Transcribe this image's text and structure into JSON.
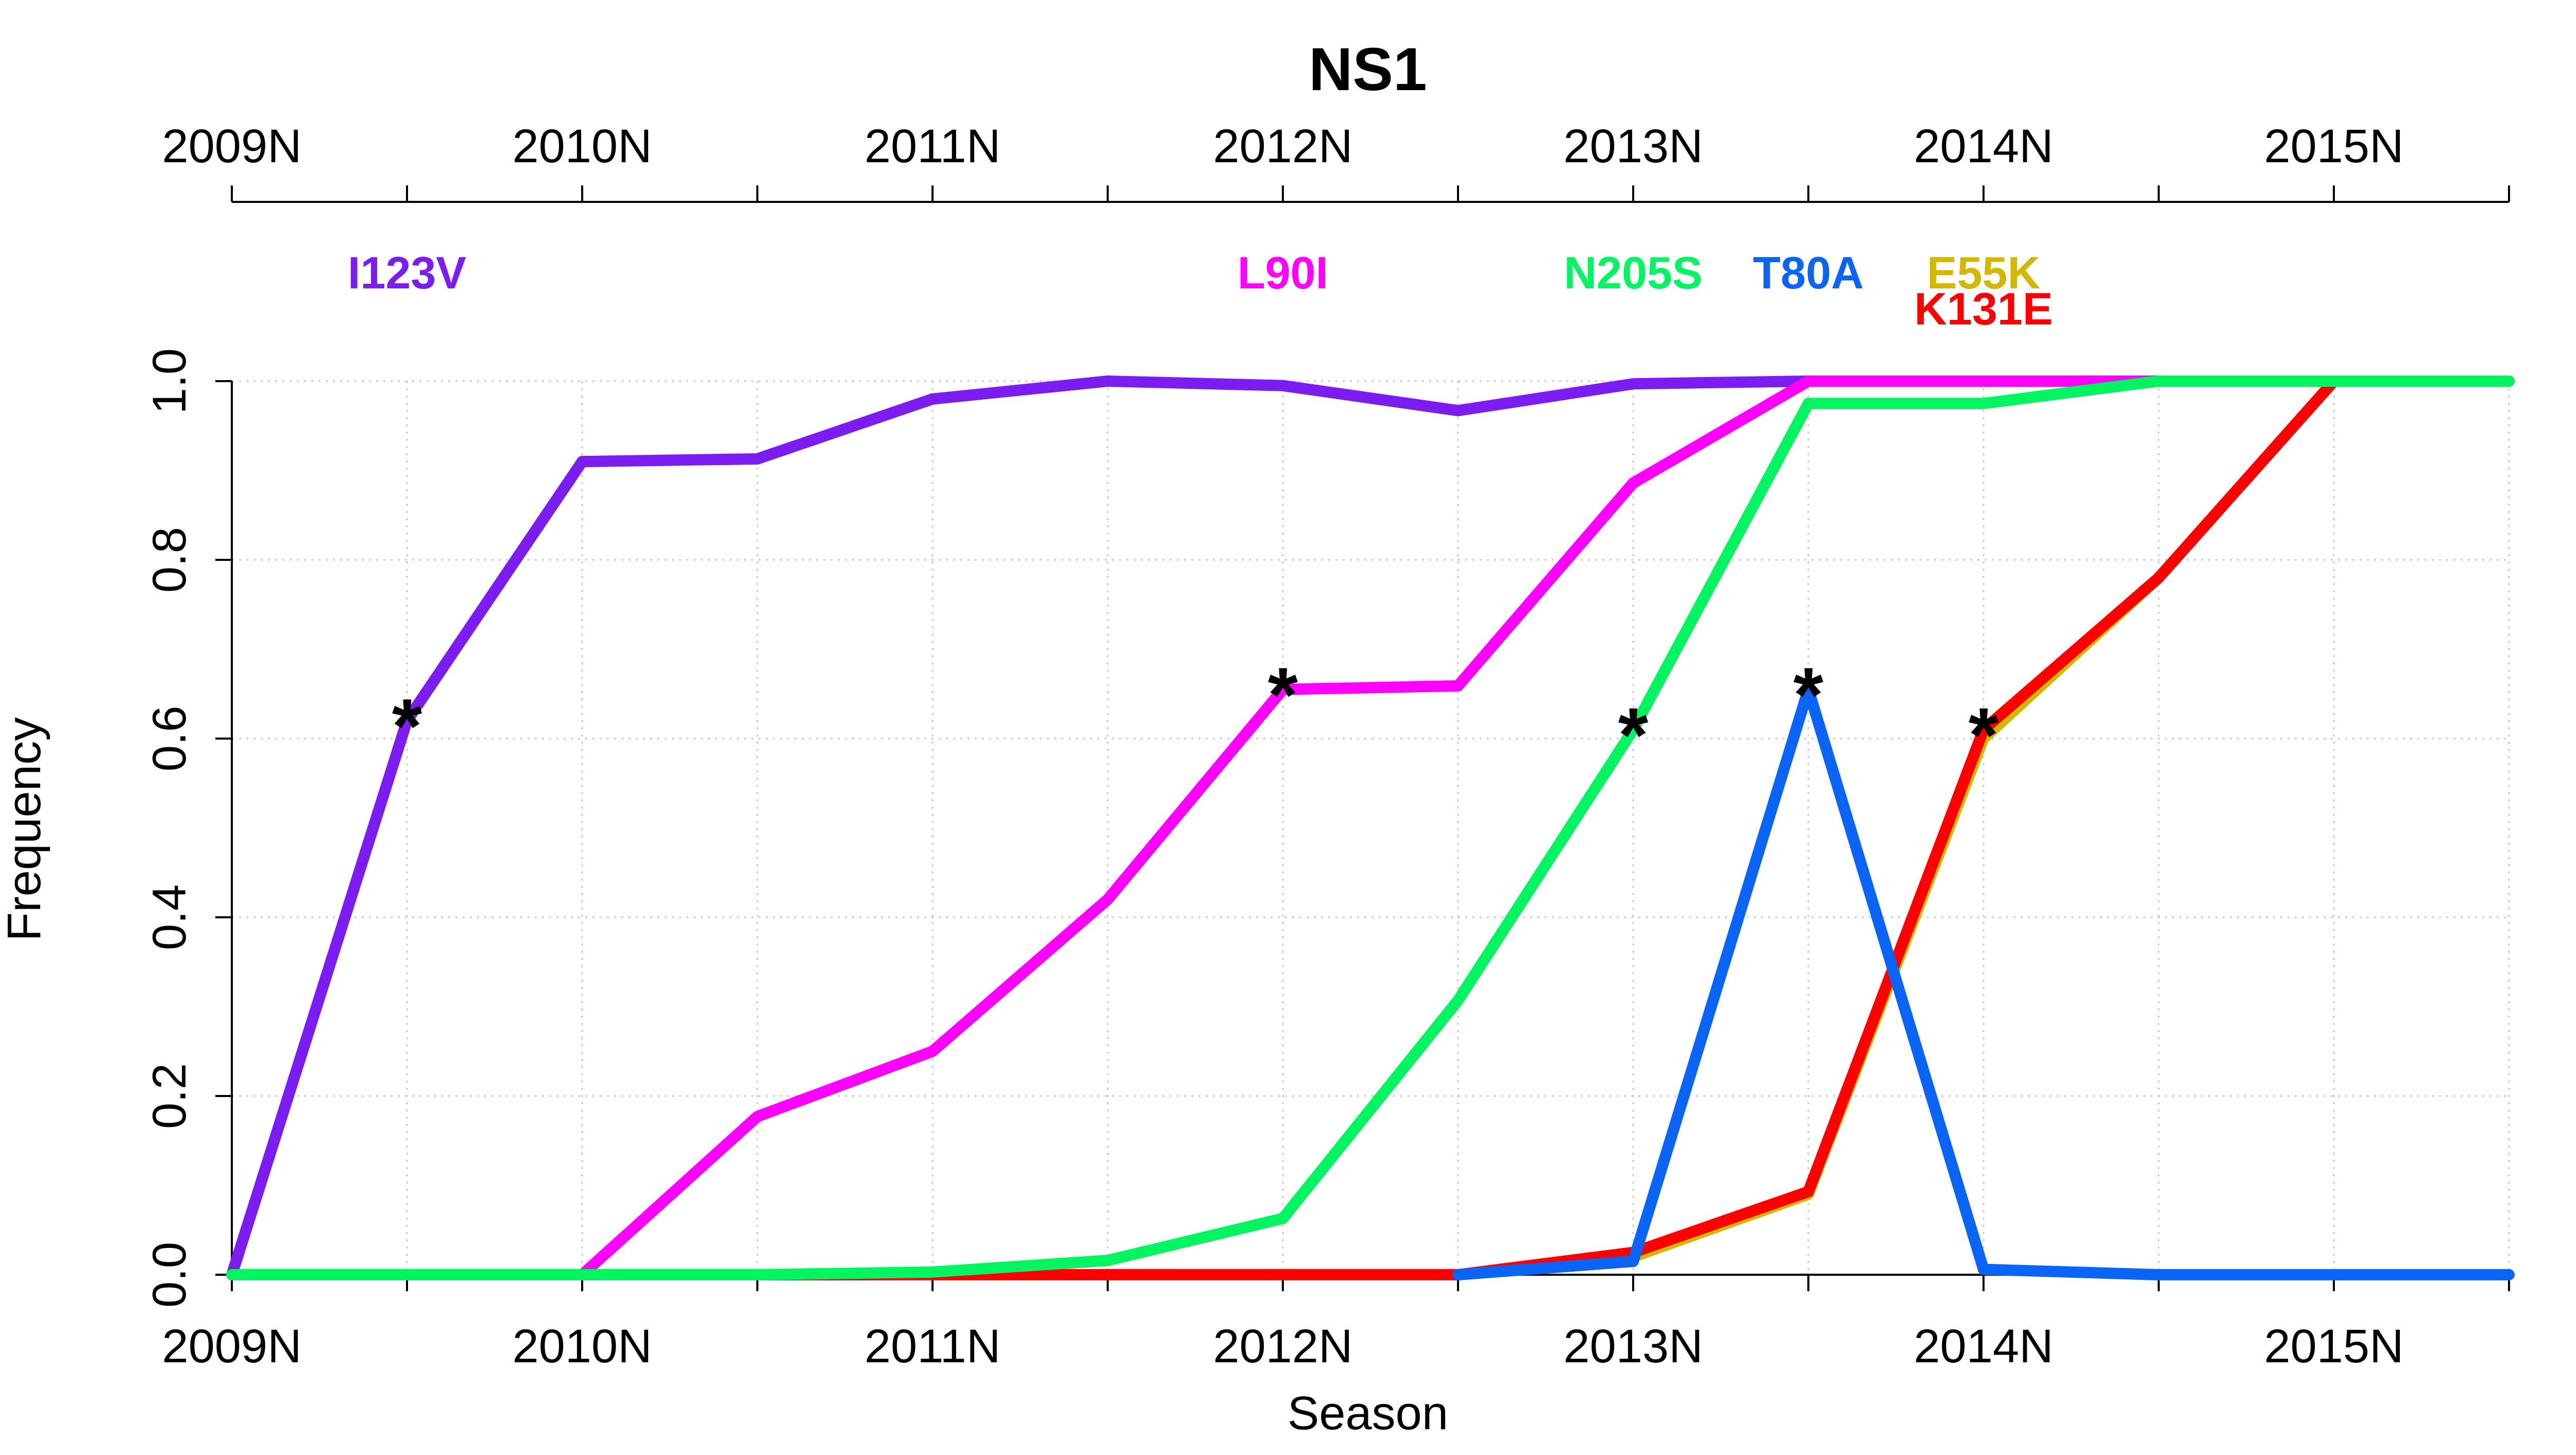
{
  "chart_data": {
    "type": "line",
    "title": "NS1",
    "xlabel": "Season",
    "ylabel": "Frequency",
    "x_range": [
      0,
      13
    ],
    "ylim": [
      0,
      1
    ],
    "y_ticks": [
      0.0,
      0.2,
      0.4,
      0.6,
      0.8,
      1.0
    ],
    "y_tick_labels": [
      "0.0",
      "0.2",
      "0.4",
      "0.6",
      "0.8",
      "1.0"
    ],
    "x_major_ticks": [
      0,
      2,
      4,
      6,
      8,
      10,
      12
    ],
    "x_tick_labels": [
      "2009N",
      "2010N",
      "2011N",
      "2012N",
      "2013N",
      "2014N",
      "2015N"
    ],
    "x_minor_ticks": [
      1,
      3,
      5,
      7,
      9,
      11,
      13
    ],
    "grid": true,
    "marker_symbol": "*",
    "series": [
      {
        "name": "I123V",
        "color": "#7b1cf0",
        "label_x": 1,
        "label_row": 0,
        "star": [
          1,
          0.62
        ],
        "x": [
          0,
          1,
          2,
          3,
          4,
          5,
          6,
          7,
          8,
          9,
          10,
          11,
          12,
          13
        ],
        "values": [
          0.0,
          0.62,
          0.91,
          0.913,
          0.98,
          1.0,
          0.995,
          0.967,
          0.997,
          1.0,
          1.0,
          1.0,
          1.0,
          1.0
        ]
      },
      {
        "name": "L90I",
        "color": "#ff00ff",
        "label_x": 6,
        "label_row": 0,
        "star": [
          6,
          0.655
        ],
        "x": [
          2,
          3,
          4,
          5,
          6,
          7,
          8,
          9,
          10,
          11,
          12,
          13
        ],
        "values": [
          0.0,
          0.177,
          0.25,
          0.42,
          0.655,
          0.659,
          0.886,
          1.0,
          1.0,
          1.0,
          1.0,
          1.0
        ]
      },
      {
        "name": "E55K",
        "color": "#d4b800",
        "label_x": 10,
        "label_row": 0,
        "star": null,
        "x": [
          0,
          1,
          2,
          3,
          4,
          5,
          6,
          7,
          8,
          9,
          10,
          11,
          12,
          13
        ],
        "values": [
          0.0,
          0.0,
          0.0,
          0.0,
          0.0,
          0.0,
          0.0,
          0.0,
          0.02,
          0.09,
          0.6,
          0.78,
          1.0,
          1.0
        ]
      },
      {
        "name": "K131E",
        "color": "#ff0000",
        "label_x": 10,
        "label_row": 1,
        "star": [
          10,
          0.61
        ],
        "x": [
          0,
          1,
          2,
          3,
          4,
          5,
          6,
          7,
          8,
          9,
          10,
          11,
          12,
          13
        ],
        "values": [
          0.0,
          0.0,
          0.0,
          0.0,
          0.0,
          0.0,
          0.0,
          0.0,
          0.025,
          0.093,
          0.61,
          0.78,
          1.0,
          1.0
        ]
      },
      {
        "name": "T80A",
        "color": "#0a64f5",
        "label_x": 9,
        "label_row": 0,
        "star": [
          9,
          0.655
        ],
        "x": [
          7,
          8,
          9,
          10,
          11,
          12,
          13
        ],
        "values": [
          0.0,
          0.015,
          0.655,
          0.006,
          0.0,
          0.0,
          0.0
        ]
      },
      {
        "name": "N205S",
        "color": "#00f560",
        "label_x": 8,
        "label_row": 0,
        "star": [
          8,
          0.61
        ],
        "x": [
          0,
          1,
          2,
          3,
          4,
          5,
          6,
          7,
          8,
          9,
          10,
          11,
          12,
          13
        ],
        "values": [
          0.0,
          0.0,
          0.0,
          0.0,
          0.003,
          0.016,
          0.063,
          0.307,
          0.61,
          0.975,
          0.975,
          1.0,
          1.0,
          1.0
        ]
      }
    ]
  }
}
